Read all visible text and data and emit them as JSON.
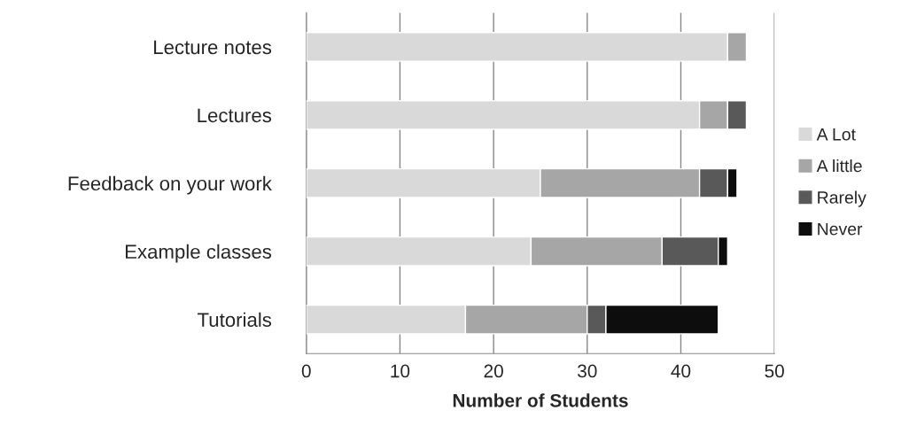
{
  "chart_data": {
    "type": "bar",
    "orientation": "horizontal",
    "stacked": true,
    "xlabel": "Number of Students",
    "categories": [
      "Lecture notes",
      "Lectures",
      "Feedback on your work",
      "Example classes",
      "Tutorials"
    ],
    "series": [
      {
        "name": "A Lot",
        "color": "#d9d9d9",
        "values": [
          45,
          42,
          25,
          24,
          17
        ]
      },
      {
        "name": "A little",
        "color": "#a6a6a6",
        "values": [
          2,
          3,
          17,
          14,
          13
        ]
      },
      {
        "name": "Rarely",
        "color": "#595959",
        "values": [
          null,
          2,
          3,
          6,
          2
        ]
      },
      {
        "name": "Never",
        "color": "#0d0d0d",
        "values": [
          null,
          null,
          1,
          1,
          12
        ]
      }
    ],
    "xlim": [
      0,
      50
    ],
    "xticks": [
      0,
      10,
      20,
      30,
      40,
      50
    ],
    "grid": "x",
    "legend": "right"
  }
}
